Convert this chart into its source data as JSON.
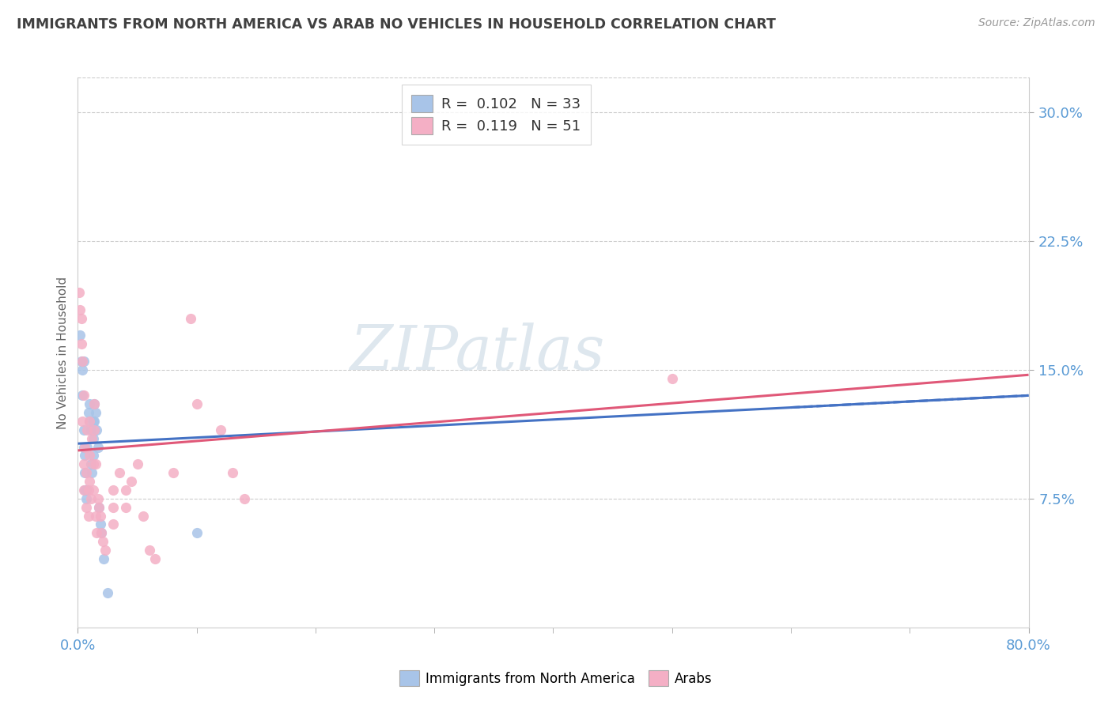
{
  "title": "IMMIGRANTS FROM NORTH AMERICA VS ARAB NO VEHICLES IN HOUSEHOLD CORRELATION CHART",
  "source": "Source: ZipAtlas.com",
  "ylabel": "No Vehicles in Household",
  "xlim": [
    0.0,
    0.8
  ],
  "ylim": [
    0.0,
    0.32
  ],
  "ytick_vals": [
    0.075,
    0.15,
    0.225,
    0.3
  ],
  "ytick_labels": [
    "7.5%",
    "15.0%",
    "22.5%",
    "30.0%"
  ],
  "xtick_vals": [
    0.0,
    0.8
  ],
  "xtick_labels": [
    "0.0%",
    "80.0%"
  ],
  "minor_xtick_vals": [
    0.1,
    0.2,
    0.3,
    0.4,
    0.5,
    0.6,
    0.7
  ],
  "blue_color": "#a8c4e8",
  "pink_color": "#f4afc5",
  "blue_line_color": "#4472c4",
  "pink_line_color": "#e05878",
  "axis_color": "#5b9bd5",
  "title_color": "#404040",
  "source_color": "#999999",
  "watermark": "ZIPatlas",
  "blue_trend_x": [
    0.0,
    0.8
  ],
  "blue_trend_y": [
    0.107,
    0.135
  ],
  "pink_trend_x": [
    0.0,
    0.8
  ],
  "pink_trend_y": [
    0.103,
    0.147
  ],
  "blue_pts": [
    [
      0.002,
      0.17
    ],
    [
      0.003,
      0.155
    ],
    [
      0.004,
      0.15
    ],
    [
      0.004,
      0.135
    ],
    [
      0.005,
      0.155
    ],
    [
      0.005,
      0.115
    ],
    [
      0.005,
      0.105
    ],
    [
      0.006,
      0.1
    ],
    [
      0.006,
      0.09
    ],
    [
      0.006,
      0.08
    ],
    [
      0.007,
      0.08
    ],
    [
      0.007,
      0.075
    ],
    [
      0.008,
      0.105
    ],
    [
      0.009,
      0.125
    ],
    [
      0.01,
      0.13
    ],
    [
      0.01,
      0.12
    ],
    [
      0.011,
      0.115
    ],
    [
      0.011,
      0.095
    ],
    [
      0.012,
      0.09
    ],
    [
      0.013,
      0.12
    ],
    [
      0.013,
      0.11
    ],
    [
      0.013,
      0.1
    ],
    [
      0.014,
      0.13
    ],
    [
      0.014,
      0.12
    ],
    [
      0.015,
      0.125
    ],
    [
      0.016,
      0.115
    ],
    [
      0.017,
      0.105
    ],
    [
      0.018,
      0.07
    ],
    [
      0.019,
      0.06
    ],
    [
      0.02,
      0.055
    ],
    [
      0.022,
      0.04
    ],
    [
      0.025,
      0.02
    ],
    [
      0.1,
      0.055
    ]
  ],
  "pink_pts": [
    [
      0.001,
      0.195
    ],
    [
      0.002,
      0.185
    ],
    [
      0.003,
      0.18
    ],
    [
      0.003,
      0.165
    ],
    [
      0.004,
      0.155
    ],
    [
      0.004,
      0.12
    ],
    [
      0.005,
      0.135
    ],
    [
      0.005,
      0.095
    ],
    [
      0.005,
      0.08
    ],
    [
      0.006,
      0.105
    ],
    [
      0.007,
      0.09
    ],
    [
      0.007,
      0.07
    ],
    [
      0.008,
      0.115
    ],
    [
      0.009,
      0.08
    ],
    [
      0.009,
      0.065
    ],
    [
      0.01,
      0.12
    ],
    [
      0.01,
      0.1
    ],
    [
      0.01,
      0.085
    ],
    [
      0.011,
      0.075
    ],
    [
      0.012,
      0.11
    ],
    [
      0.013,
      0.095
    ],
    [
      0.013,
      0.08
    ],
    [
      0.014,
      0.13
    ],
    [
      0.014,
      0.115
    ],
    [
      0.015,
      0.095
    ],
    [
      0.015,
      0.065
    ],
    [
      0.016,
      0.055
    ],
    [
      0.017,
      0.075
    ],
    [
      0.018,
      0.07
    ],
    [
      0.019,
      0.065
    ],
    [
      0.02,
      0.055
    ],
    [
      0.021,
      0.05
    ],
    [
      0.023,
      0.045
    ],
    [
      0.03,
      0.08
    ],
    [
      0.03,
      0.07
    ],
    [
      0.03,
      0.06
    ],
    [
      0.035,
      0.09
    ],
    [
      0.04,
      0.08
    ],
    [
      0.04,
      0.07
    ],
    [
      0.045,
      0.085
    ],
    [
      0.05,
      0.095
    ],
    [
      0.055,
      0.065
    ],
    [
      0.06,
      0.045
    ],
    [
      0.065,
      0.04
    ],
    [
      0.08,
      0.09
    ],
    [
      0.095,
      0.18
    ],
    [
      0.1,
      0.13
    ],
    [
      0.12,
      0.115
    ],
    [
      0.13,
      0.09
    ],
    [
      0.14,
      0.075
    ],
    [
      0.5,
      0.145
    ]
  ]
}
